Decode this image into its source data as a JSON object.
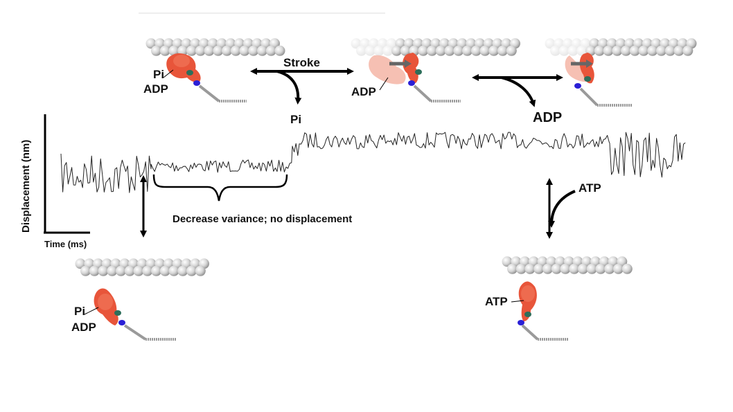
{
  "axes": {
    "y_label": "Displacement (nm)",
    "x_label": "Time (ms)"
  },
  "trace": {
    "annotation": "Decrease variance; no displacement",
    "segments": [
      {
        "phase": "bound, pre-stroke",
        "level": 0,
        "noise": "high"
      },
      {
        "phase": "bound, low variance",
        "level": 0,
        "noise": "low"
      },
      {
        "phase": "post-stroke",
        "level": 1,
        "noise": "medium"
      },
      {
        "phase": "detached",
        "level": 1,
        "noise": "high"
      }
    ]
  },
  "states": {
    "top_left": {
      "labels": [
        "Pi",
        "ADP"
      ]
    },
    "top_middle": {
      "labels": [
        "ADP"
      ]
    },
    "top_right": {
      "labels": []
    },
    "bottom_left": {
      "labels": [
        "Pi",
        "ADP"
      ]
    },
    "bottom_right": {
      "labels": [
        "ATP"
      ]
    }
  },
  "transitions": {
    "stroke": {
      "label": "Stroke",
      "released": "Pi"
    },
    "adp_release": {
      "released": "ADP"
    },
    "atp_binding": {
      "label": "ATP"
    }
  },
  "colors": {
    "myosin": "#e8553a",
    "myosin_faded": "#f4b0a0",
    "actin": "#d4d4d4",
    "light_chain_green": "#2d6e5a",
    "light_chain_blue": "#2a1fd6",
    "trace": "#222222"
  }
}
